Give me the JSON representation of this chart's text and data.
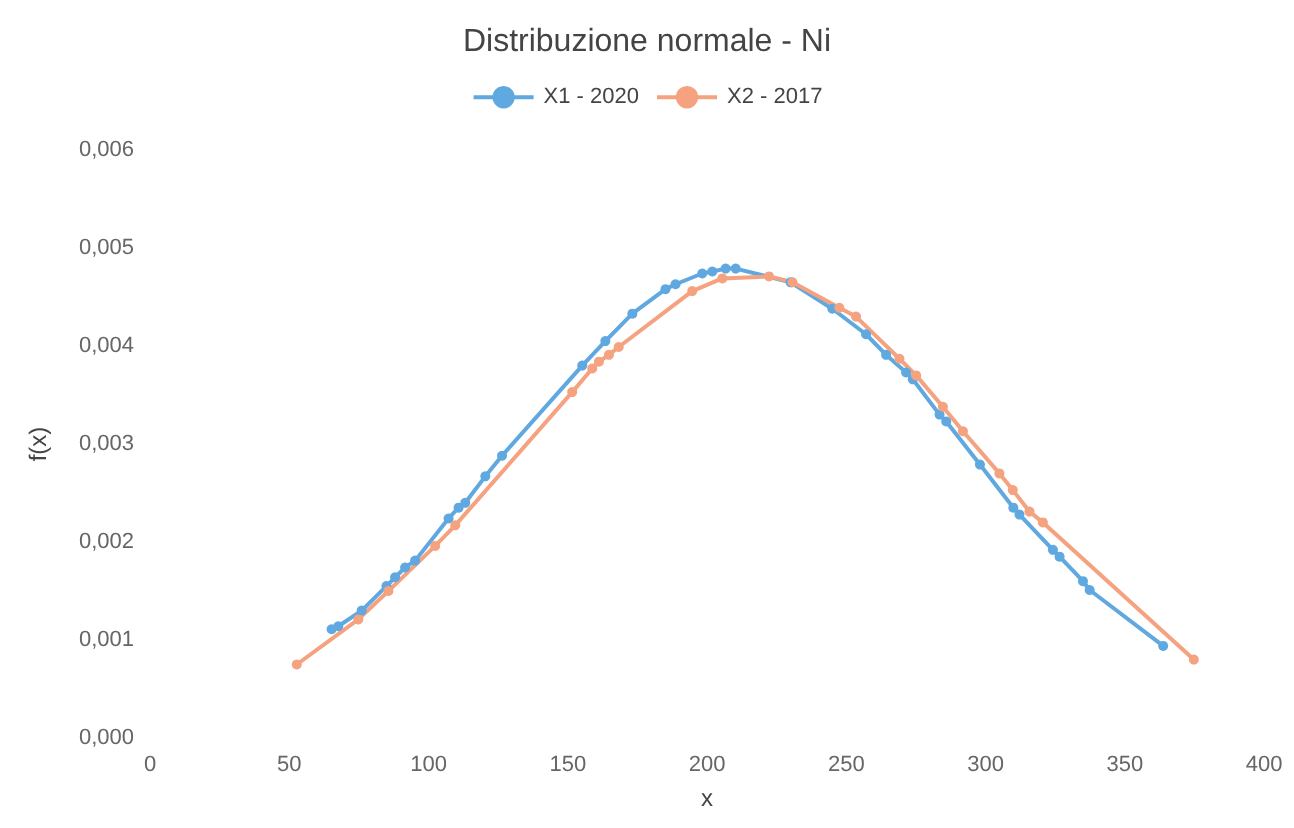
{
  "chart_data": {
    "type": "line",
    "title": "Distribuzione normale - Ni",
    "xlabel": "x",
    "ylabel": "f(x)",
    "legend": "top",
    "marker": "circle",
    "grid": false,
    "xlim": [
      0,
      400
    ],
    "xticks": [
      0,
      50,
      100,
      150,
      200,
      250,
      300,
      350,
      400
    ],
    "ylim": [
      0,
      0.006
    ],
    "yticks": [
      {
        "value": 0,
        "label": "0,000"
      },
      {
        "value": 0.001,
        "label": "0,001"
      },
      {
        "value": 0.002,
        "label": "0,002"
      },
      {
        "value": 0.003,
        "label": "0,003"
      },
      {
        "value": 0.004,
        "label": "0,004"
      },
      {
        "value": 0.005,
        "label": "0,005"
      },
      {
        "value": 0.006,
        "label": "0,006"
      }
    ],
    "series": [
      {
        "name": "X1 - 2020",
        "color": "#5fa8e0",
        "x": [
          65.2,
          67.6,
          76,
          84.9,
          88,
          91.6,
          95.2,
          107.2,
          110.8,
          113.2,
          120.4,
          126.4,
          155.2,
          163.5,
          173.2,
          185.1,
          188.7,
          198.3,
          201.9,
          206.7,
          210.3,
          230,
          245,
          257.1,
          264.3,
          271.5,
          273.9,
          283.5,
          285.9,
          298,
          310,
          312.2,
          324.2,
          326.6,
          335,
          337.4,
          363.8
        ],
        "values": [
          0.00111,
          0.00114,
          0.0013,
          0.00155,
          0.00164,
          0.00174,
          0.00181,
          0.00224,
          0.00235,
          0.0024,
          0.00267,
          0.00288,
          0.0038,
          0.00405,
          0.00433,
          0.00458,
          0.00463,
          0.00474,
          0.00476,
          0.00479,
          0.00479,
          0.00465,
          0.00438,
          0.00412,
          0.00391,
          0.00373,
          0.00366,
          0.0033,
          0.00323,
          0.00279,
          0.00235,
          0.00228,
          0.00192,
          0.00185,
          0.0016,
          0.00151,
          0.00094
        ]
      },
      {
        "name": "X2 - 2017",
        "color": "#f4a27f",
        "x": [
          52.7,
          74.8,
          85.6,
          102.4,
          109.6,
          151.6,
          158.8,
          161.2,
          164.8,
          168.3,
          194.7,
          205.5,
          222.3,
          230.7,
          247.5,
          253.5,
          269.1,
          275.1,
          284.7,
          291.9,
          305,
          309.8,
          315.8,
          320.6,
          374.8
        ],
        "values": [
          0.00075,
          0.00121,
          0.0015,
          0.00196,
          0.00217,
          0.00353,
          0.00377,
          0.00384,
          0.00391,
          0.00399,
          0.00456,
          0.00469,
          0.00471,
          0.00465,
          0.00439,
          0.0043,
          0.00387,
          0.0037,
          0.00338,
          0.00313,
          0.0027,
          0.00253,
          0.00231,
          0.0022,
          0.0008
        ]
      }
    ]
  }
}
